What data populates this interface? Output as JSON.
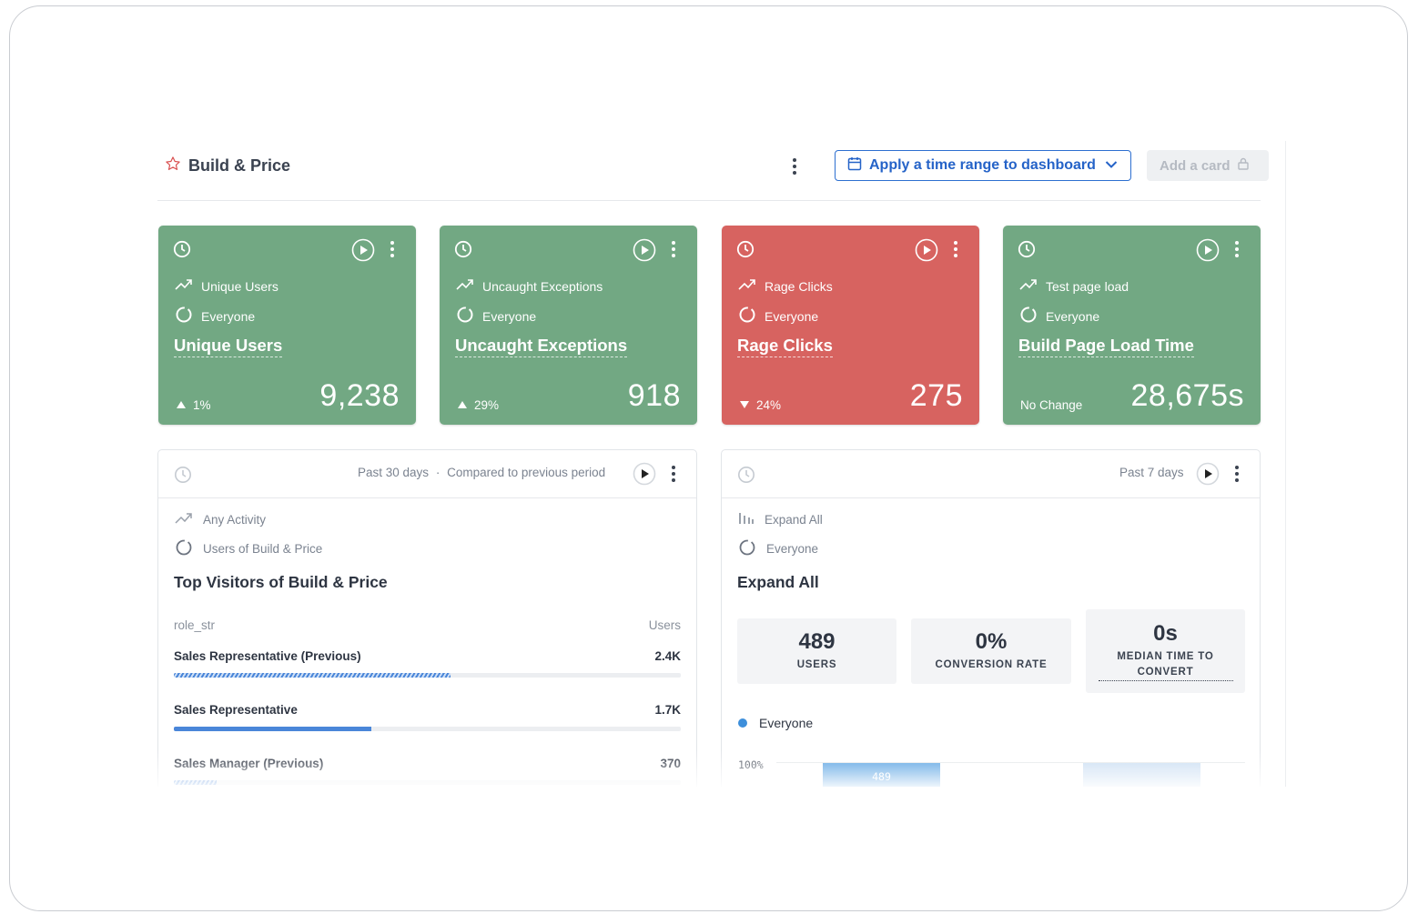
{
  "header": {
    "title": "Build & Price",
    "time_range_button": "Apply a time range to dashboard",
    "add_card_button": "Add a card"
  },
  "metric_cards": [
    {
      "event": "Unique Users",
      "segment": "Everyone",
      "title": "Unique Users",
      "change": "1%",
      "direction": "up",
      "value": "9,238",
      "color": "#72a883"
    },
    {
      "event": "Uncaught Exceptions",
      "segment": "Everyone",
      "title": "Uncaught Exceptions",
      "change": "29%",
      "direction": "up",
      "value": "918",
      "color": "#72a883"
    },
    {
      "event": "Rage Clicks",
      "segment": "Everyone",
      "title": "Rage Clicks",
      "change": "24%",
      "direction": "down",
      "value": "275",
      "color": "#d76360"
    },
    {
      "event": "Test page load",
      "segment": "Everyone",
      "title": "Build Page Load Time",
      "change": "No Change",
      "direction": "none",
      "value": "28,675s",
      "color": "#72a883"
    }
  ],
  "visitors_panel": {
    "range": "Past 30 days",
    "separator": "·",
    "comparison": "Compared to previous period",
    "event": "Any Activity",
    "segment": "Users of Build & Price",
    "title": "Top Visitors of Build & Price",
    "col_left": "role_str",
    "col_right": "Users",
    "rows": [
      {
        "label": "Sales Representative (Previous)",
        "value": "2.4K",
        "fraction": 0.545,
        "style": "hatched"
      },
      {
        "label": "Sales Representative",
        "value": "1.7K",
        "fraction": 0.39,
        "style": "solid"
      },
      {
        "label": "Sales Manager (Previous)",
        "value": "370",
        "fraction": 0.085,
        "style": "hatched"
      }
    ]
  },
  "funnel_panel": {
    "range": "Past 7 days",
    "event": "Expand All",
    "segment": "Everyone",
    "title": "Expand All",
    "stats": [
      {
        "value": "489",
        "label": "USERS"
      },
      {
        "value": "0%",
        "label": "CONVERSION RATE"
      },
      {
        "value": "0s",
        "label": "MEDIAN TIME TO CONVERT"
      }
    ],
    "legend": "Everyone",
    "axis_label": "100%",
    "bars": [
      {
        "label": "489",
        "fraction": 1.0,
        "color": "#4b9be0"
      },
      {
        "label": "",
        "fraction": 1.0,
        "color": "#c7dcf2"
      }
    ]
  }
}
